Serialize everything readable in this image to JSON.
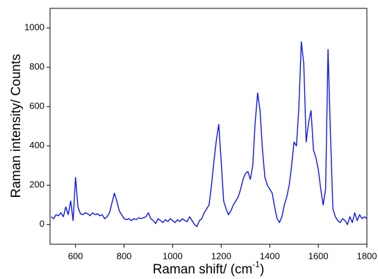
{
  "chart_data": {
    "type": "line",
    "x_label": {
      "text": "Raman shift/ (cm",
      "superscript": "-1",
      "suffix": ")"
    },
    "y_label": "Raman intensity/ Counts",
    "x": [
      500,
      510,
      520,
      530,
      540,
      550,
      560,
      570,
      580,
      590,
      600,
      610,
      620,
      630,
      640,
      650,
      660,
      670,
      680,
      690,
      700,
      710,
      720,
      730,
      740,
      750,
      760,
      770,
      780,
      790,
      800,
      810,
      820,
      830,
      840,
      850,
      860,
      870,
      880,
      890,
      900,
      910,
      920,
      930,
      940,
      950,
      960,
      970,
      980,
      990,
      1000,
      1010,
      1020,
      1030,
      1040,
      1050,
      1060,
      1070,
      1080,
      1090,
      1100,
      1110,
      1120,
      1130,
      1140,
      1150,
      1160,
      1170,
      1180,
      1190,
      1200,
      1210,
      1220,
      1230,
      1240,
      1250,
      1260,
      1270,
      1280,
      1290,
      1300,
      1310,
      1320,
      1330,
      1340,
      1350,
      1360,
      1370,
      1380,
      1390,
      1400,
      1410,
      1420,
      1430,
      1440,
      1450,
      1460,
      1470,
      1480,
      1490,
      1500,
      1510,
      1520,
      1530,
      1540,
      1550,
      1560,
      1570,
      1580,
      1590,
      1600,
      1610,
      1620,
      1630,
      1640,
      1650,
      1660,
      1670,
      1680,
      1690,
      1700,
      1710,
      1720,
      1730,
      1740,
      1750,
      1760,
      1770,
      1780,
      1790,
      1800
    ],
    "series": [
      {
        "color": "#0a14e6",
        "values": [
          40,
          30,
          50,
          45,
          60,
          40,
          90,
          50,
          120,
          20,
          240,
          90,
          55,
          50,
          60,
          55,
          45,
          60,
          50,
          55,
          45,
          50,
          30,
          40,
          60,
          110,
          160,
          120,
          70,
          50,
          30,
          25,
          30,
          20,
          30,
          25,
          35,
          30,
          35,
          40,
          60,
          30,
          20,
          5,
          30,
          20,
          10,
          25,
          15,
          30,
          20,
          10,
          25,
          15,
          30,
          20,
          15,
          40,
          20,
          0,
          -10,
          20,
          30,
          60,
          80,
          100,
          200,
          320,
          430,
          510,
          320,
          120,
          80,
          50,
          70,
          100,
          120,
          140,
          180,
          230,
          260,
          270,
          230,
          300,
          520,
          670,
          580,
          380,
          240,
          200,
          180,
          160,
          90,
          30,
          10,
          40,
          100,
          140,
          200,
          300,
          420,
          400,
          600,
          930,
          820,
          420,
          520,
          580,
          380,
          340,
          280,
          180,
          100,
          180,
          890,
          460,
          80,
          40,
          20,
          10,
          30,
          20,
          0,
          40,
          10,
          60,
          20,
          50,
          30,
          40,
          30
        ]
      }
    ],
    "xlim": [
      495,
      1800
    ],
    "ylim": [
      -100,
      1100
    ],
    "xticks": [
      600,
      800,
      1000,
      1200,
      1400,
      1600,
      1800
    ],
    "yticks": [
      0,
      200,
      400,
      600,
      800,
      1000
    ],
    "grid": false
  }
}
